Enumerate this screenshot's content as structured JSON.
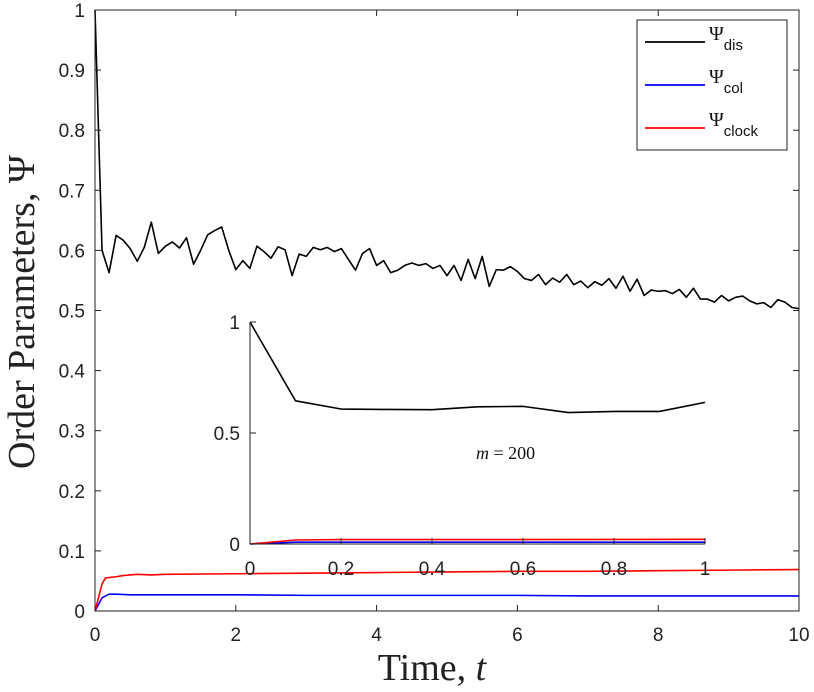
{
  "chart_data": [
    {
      "type": "line",
      "title": "",
      "xlabel_text": "Time, ",
      "xlabel_var": "t",
      "ylabel_text": "Order Parameters, ",
      "ylabel_var": "Ψ",
      "xlim": [
        0,
        10
      ],
      "ylim": [
        0,
        1
      ],
      "xticks": [
        0,
        2,
        4,
        6,
        8,
        10
      ],
      "xtick_labels": [
        "0",
        "2",
        "4",
        "6",
        "8",
        "10"
      ],
      "yticks": [
        0,
        0.1,
        0.2,
        0.3,
        0.4,
        0.5,
        0.6,
        0.7,
        0.8,
        0.9,
        1
      ],
      "ytick_labels": [
        "0",
        "0.1",
        "0.2",
        "0.3",
        "0.4",
        "0.5",
        "0.6",
        "0.7",
        "0.8",
        "0.9",
        "1"
      ],
      "grid": false,
      "legend": {
        "placement": "top-right",
        "entries": [
          {
            "symbol": "Ψ",
            "sub": "dis",
            "color": "#000000"
          },
          {
            "symbol": "Ψ",
            "sub": "col",
            "color": "#0000ff"
          },
          {
            "symbol": "Ψ",
            "sub": "clock",
            "color": "#ff0000"
          }
        ]
      },
      "series": [
        {
          "name": "Ψ_dis",
          "color": "#000000",
          "x": [
            0,
            0.1,
            0.2,
            0.3,
            0.4,
            0.5,
            0.6,
            0.7,
            0.8,
            0.9,
            1.0,
            1.1,
            1.2,
            1.3,
            1.4,
            1.5,
            1.6,
            1.7,
            1.8,
            1.9,
            2.0,
            2.1,
            2.2,
            2.3,
            2.4,
            2.5,
            2.6,
            2.7,
            2.8,
            2.9,
            3.0,
            3.1,
            3.2,
            3.3,
            3.4,
            3.5,
            3.6,
            3.7,
            3.8,
            3.9,
            4.0,
            4.1,
            4.2,
            4.3,
            4.4,
            4.5,
            4.6,
            4.7,
            4.8,
            4.9,
            5.0,
            5.1,
            5.2,
            5.3,
            5.4,
            5.5,
            5.6,
            5.7,
            5.8,
            5.9,
            6.0,
            6.1,
            6.2,
            6.3,
            6.4,
            6.5,
            6.6,
            6.7,
            6.8,
            6.9,
            7.0,
            7.1,
            7.2,
            7.3,
            7.4,
            7.5,
            7.6,
            7.7,
            7.8,
            7.9,
            8.0,
            8.1,
            8.2,
            8.3,
            8.4,
            8.5,
            8.6,
            8.7,
            8.8,
            8.9,
            9.0,
            9.1,
            9.2,
            9.3,
            9.4,
            9.5,
            9.6,
            9.7,
            9.8,
            9.9,
            10.0
          ],
          "values": [
            1.0,
            0.6,
            0.563,
            0.625,
            0.617,
            0.603,
            0.582,
            0.605,
            0.647,
            0.595,
            0.607,
            0.614,
            0.604,
            0.621,
            0.577,
            0.6,
            0.626,
            0.633,
            0.639,
            0.6,
            0.568,
            0.583,
            0.57,
            0.607,
            0.598,
            0.587,
            0.606,
            0.601,
            0.558,
            0.594,
            0.59,
            0.605,
            0.601,
            0.605,
            0.598,
            0.603,
            0.585,
            0.567,
            0.595,
            0.603,
            0.575,
            0.583,
            0.563,
            0.567,
            0.575,
            0.579,
            0.575,
            0.578,
            0.57,
            0.575,
            0.558,
            0.575,
            0.55,
            0.585,
            0.553,
            0.59,
            0.54,
            0.568,
            0.567,
            0.573,
            0.565,
            0.553,
            0.55,
            0.56,
            0.543,
            0.554,
            0.547,
            0.56,
            0.543,
            0.549,
            0.538,
            0.548,
            0.542,
            0.553,
            0.537,
            0.557,
            0.532,
            0.552,
            0.525,
            0.534,
            0.532,
            0.533,
            0.528,
            0.535,
            0.522,
            0.537,
            0.519,
            0.519,
            0.514,
            0.525,
            0.516,
            0.522,
            0.524,
            0.516,
            0.511,
            0.513,
            0.505,
            0.518,
            0.514,
            0.505,
            0.503
          ]
        },
        {
          "name": "Ψ_col",
          "color": "#0000ff",
          "x": [
            0,
            0.1,
            0.2,
            0.3,
            0.5,
            1,
            2,
            3,
            4,
            5,
            6,
            7,
            8,
            9,
            10
          ],
          "values": [
            0,
            0.022,
            0.028,
            0.028,
            0.027,
            0.027,
            0.027,
            0.026,
            0.026,
            0.026,
            0.026,
            0.025,
            0.025,
            0.025,
            0.025
          ]
        },
        {
          "name": "Ψ_clock",
          "color": "#ff0000",
          "x": [
            0,
            0.1,
            0.15,
            0.3,
            0.4,
            0.5,
            0.6,
            0.8,
            1,
            2,
            3,
            4,
            5,
            6,
            7,
            8,
            9,
            10
          ],
          "values": [
            0,
            0.045,
            0.055,
            0.057,
            0.059,
            0.06,
            0.061,
            0.06,
            0.061,
            0.062,
            0.063,
            0.064,
            0.065,
            0.066,
            0.066,
            0.067,
            0.068,
            0.069
          ]
        }
      ]
    },
    {
      "type": "line",
      "role": "inset",
      "title": "",
      "xlim": [
        0,
        1
      ],
      "ylim": [
        0,
        1
      ],
      "xticks": [
        0,
        0.2,
        0.4,
        0.6,
        0.8,
        1
      ],
      "xtick_labels": [
        "0",
        "0.2",
        "0.4",
        "0.6",
        "0.8",
        "1"
      ],
      "yticks": [
        0,
        0.5,
        1
      ],
      "ytick_labels": [
        "0",
        "0.5",
        "1"
      ],
      "annotation_var": "m",
      "annotation_rest": " = 200",
      "series": [
        {
          "name": "Ψ_dis",
          "color": "#000000",
          "x": [
            0,
            0.1,
            0.2,
            0.3,
            0.4,
            0.5,
            0.6,
            0.7,
            0.8,
            0.9,
            1.0
          ],
          "values": [
            1.0,
            0.645,
            0.608,
            0.606,
            0.605,
            0.618,
            0.62,
            0.592,
            0.597,
            0.597,
            0.638
          ]
        },
        {
          "name": "Ψ_col",
          "color": "#0000ff",
          "x": [
            0,
            0.1,
            0.2,
            0.5,
            1.0
          ],
          "values": [
            0,
            0.008,
            0.008,
            0.008,
            0.008
          ]
        },
        {
          "name": "Ψ_clock",
          "color": "#ff0000",
          "x": [
            0,
            0.1,
            0.2,
            0.5,
            1.0
          ],
          "values": [
            0,
            0.018,
            0.02,
            0.02,
            0.021
          ]
        }
      ]
    }
  ]
}
